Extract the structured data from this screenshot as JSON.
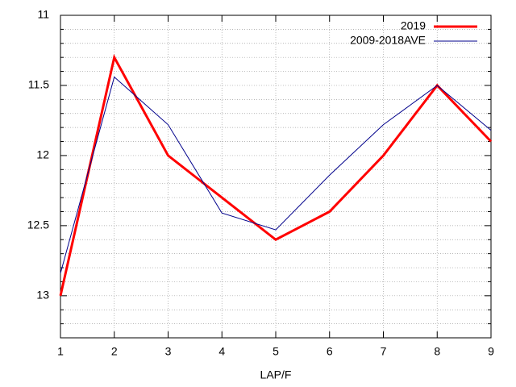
{
  "chart_data": {
    "type": "line",
    "x_label": "LAP/F",
    "x": [
      1,
      2,
      3,
      4,
      5,
      6,
      7,
      8,
      9
    ],
    "series": [
      {
        "name": "2019",
        "color": "#ff0000",
        "values": [
          13,
          11.3,
          12,
          12.3,
          12.6,
          12.4,
          12,
          11.5,
          11.9
        ]
      },
      {
        "name": "2009-2018AVE",
        "color": "#00008b",
        "values": [
          12.84,
          11.44,
          11.78,
          12.41,
          12.53,
          12.14,
          11.78,
          11.5,
          11.82
        ]
      }
    ],
    "xlim": [
      1,
      9
    ],
    "xticks": [
      1,
      2,
      3,
      4,
      5,
      6,
      7,
      8,
      9
    ],
    "ylim": [
      13.3,
      11
    ],
    "yticks": [
      11,
      11.5,
      12,
      12.5,
      13
    ],
    "yminorticks": [
      11.1,
      11.2,
      11.3,
      11.4,
      11.6,
      11.7,
      11.8,
      11.9,
      12.1,
      12.2,
      12.3,
      12.4,
      12.6,
      12.7,
      12.8,
      12.9,
      13.1,
      13.2
    ],
    "grid": true,
    "legend": "top-right"
  }
}
